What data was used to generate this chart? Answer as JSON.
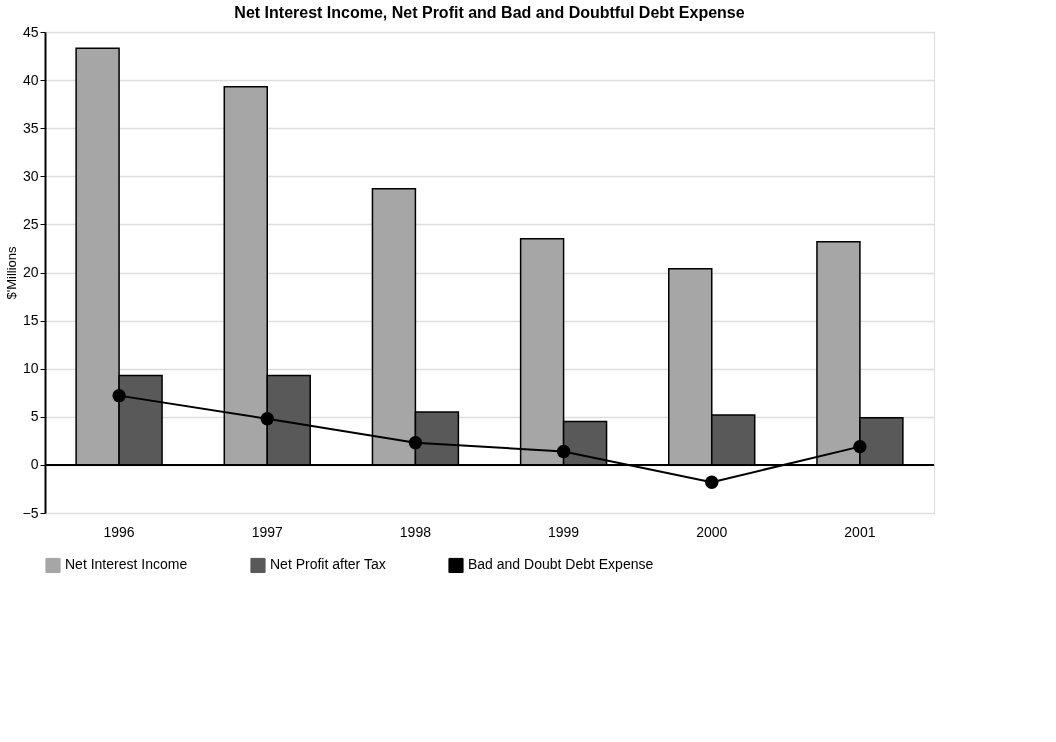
{
  "chart_data": {
    "type": "bar",
    "title": "Net Interest Income, Net Profit and Bad and Doubtful Debt Expense",
    "ylabel": "$'Millions",
    "categories": [
      "1996",
      "1997",
      "1998",
      "1999",
      "2000",
      "2001"
    ],
    "series": [
      {
        "name": "Net Interest Income",
        "color": "#a6a6a6",
        "values": [
          43.3,
          39.3,
          28.7,
          23.5,
          20.4,
          23.2
        ]
      },
      {
        "name": "Net Profit after Tax",
        "color": "#595959",
        "values": [
          9.3,
          9.3,
          5.5,
          4.5,
          5.2,
          4.9
        ]
      },
      {
        "name": "Bad and Doubt Debt Expense",
        "color": "#000000",
        "type": "line",
        "marker": "circle",
        "values": [
          7.2,
          4.8,
          2.3,
          1.4,
          -1.8,
          1.9
        ]
      }
    ],
    "ylim": [
      -5,
      45
    ],
    "yticks": [
      -5,
      0,
      5,
      10,
      15,
      20,
      25,
      30,
      35,
      40,
      45
    ],
    "grid": "y",
    "legend": "bottom"
  }
}
